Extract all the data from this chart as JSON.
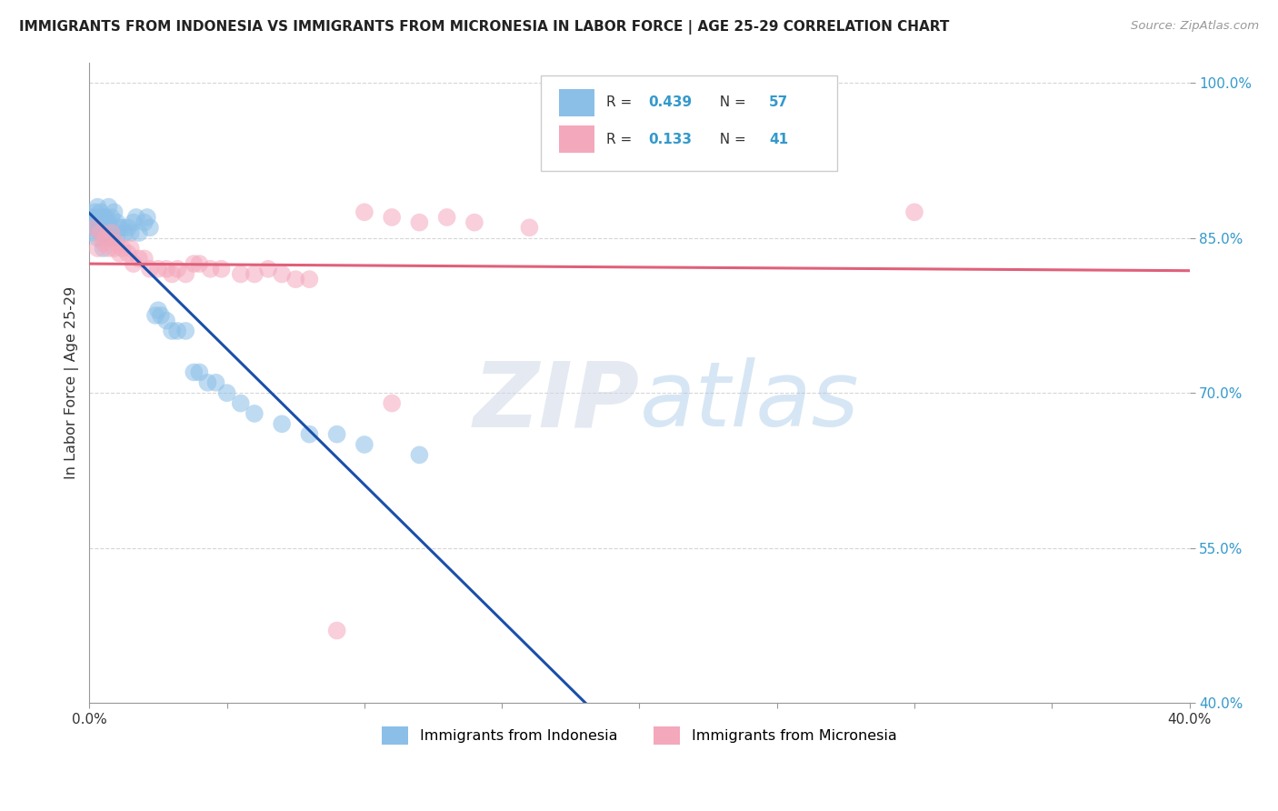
{
  "title": "IMMIGRANTS FROM INDONESIA VS IMMIGRANTS FROM MICRONESIA IN LABOR FORCE | AGE 25-29 CORRELATION CHART",
  "source": "Source: ZipAtlas.com",
  "ylabel": "In Labor Force | Age 25-29",
  "x_min": 0.0,
  "x_max": 0.4,
  "y_min": 0.4,
  "y_max": 1.02,
  "y_ticks": [
    0.4,
    0.55,
    0.7,
    0.85,
    1.0
  ],
  "R_indonesia": 0.439,
  "N_indonesia": 57,
  "R_micronesia": 0.133,
  "N_micronesia": 41,
  "color_indonesia": "#8bbfe8",
  "color_micronesia": "#f4a8bc",
  "line_color_indonesia": "#1a4faa",
  "line_color_micronesia": "#e0607a",
  "indo_x": [
    0.001,
    0.001,
    0.002,
    0.002,
    0.002,
    0.003,
    0.003,
    0.003,
    0.003,
    0.004,
    0.004,
    0.004,
    0.005,
    0.005,
    0.005,
    0.006,
    0.006,
    0.006,
    0.007,
    0.007,
    0.007,
    0.008,
    0.008,
    0.009,
    0.009,
    0.01,
    0.01,
    0.011,
    0.012,
    0.013,
    0.014,
    0.015,
    0.016,
    0.017,
    0.018,
    0.02,
    0.021,
    0.022,
    0.024,
    0.025,
    0.026,
    0.028,
    0.03,
    0.032,
    0.035,
    0.038,
    0.04,
    0.043,
    0.046,
    0.05,
    0.055,
    0.06,
    0.07,
    0.08,
    0.09,
    0.1,
    0.12
  ],
  "indo_y": [
    0.855,
    0.87,
    0.86,
    0.875,
    0.865,
    0.85,
    0.87,
    0.86,
    0.88,
    0.865,
    0.855,
    0.875,
    0.84,
    0.86,
    0.87,
    0.865,
    0.855,
    0.87,
    0.855,
    0.865,
    0.88,
    0.85,
    0.87,
    0.855,
    0.875,
    0.85,
    0.865,
    0.86,
    0.86,
    0.855,
    0.86,
    0.855,
    0.865,
    0.87,
    0.855,
    0.865,
    0.87,
    0.86,
    0.775,
    0.78,
    0.775,
    0.77,
    0.76,
    0.76,
    0.76,
    0.72,
    0.72,
    0.71,
    0.71,
    0.7,
    0.69,
    0.68,
    0.67,
    0.66,
    0.66,
    0.65,
    0.64
  ],
  "micr_x": [
    0.002,
    0.003,
    0.004,
    0.005,
    0.006,
    0.007,
    0.008,
    0.009,
    0.01,
    0.011,
    0.012,
    0.014,
    0.015,
    0.016,
    0.018,
    0.02,
    0.022,
    0.025,
    0.028,
    0.03,
    0.032,
    0.035,
    0.038,
    0.04,
    0.044,
    0.048,
    0.055,
    0.06,
    0.065,
    0.07,
    0.075,
    0.08,
    0.09,
    0.1,
    0.11,
    0.12,
    0.13,
    0.14,
    0.16,
    0.3,
    0.11
  ],
  "micr_y": [
    0.86,
    0.84,
    0.855,
    0.845,
    0.85,
    0.84,
    0.855,
    0.84,
    0.845,
    0.835,
    0.84,
    0.835,
    0.84,
    0.825,
    0.83,
    0.83,
    0.82,
    0.82,
    0.82,
    0.815,
    0.82,
    0.815,
    0.825,
    0.825,
    0.82,
    0.82,
    0.815,
    0.815,
    0.82,
    0.815,
    0.81,
    0.81,
    0.47,
    0.875,
    0.87,
    0.865,
    0.87,
    0.865,
    0.86,
    0.875,
    0.69
  ]
}
